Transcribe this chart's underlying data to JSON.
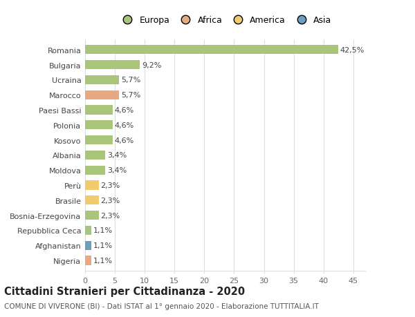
{
  "countries": [
    "Romania",
    "Bulgaria",
    "Ucraina",
    "Marocco",
    "Paesi Bassi",
    "Polonia",
    "Kosovo",
    "Albania",
    "Moldova",
    "Perù",
    "Brasile",
    "Bosnia-Erzegovina",
    "Repubblica Ceca",
    "Afghanistan",
    "Nigeria"
  ],
  "values": [
    42.5,
    9.2,
    5.7,
    5.7,
    4.6,
    4.6,
    4.6,
    3.4,
    3.4,
    2.3,
    2.3,
    2.3,
    1.1,
    1.1,
    1.1
  ],
  "labels": [
    "42,5%",
    "9,2%",
    "5,7%",
    "5,7%",
    "4,6%",
    "4,6%",
    "4,6%",
    "3,4%",
    "3,4%",
    "2,3%",
    "2,3%",
    "2,3%",
    "1,1%",
    "1,1%",
    "1,1%"
  ],
  "continents": [
    "Europa",
    "Europa",
    "Europa",
    "Africa",
    "Europa",
    "Europa",
    "Europa",
    "Europa",
    "Europa",
    "America",
    "America",
    "Europa",
    "Europa",
    "Asia",
    "Africa"
  ],
  "colors": {
    "Europa": "#a8c57a",
    "Africa": "#e8a882",
    "America": "#f0cc6e",
    "Asia": "#6a9fc0"
  },
  "legend_order": [
    "Europa",
    "Africa",
    "America",
    "Asia"
  ],
  "legend_colors": [
    "#a8c57a",
    "#e8a882",
    "#f0cc6e",
    "#6a9fc0"
  ],
  "title": "Cittadini Stranieri per Cittadinanza - 2020",
  "subtitle": "COMUNE DI VIVERONE (BI) - Dati ISTAT al 1° gennaio 2020 - Elaborazione TUTTITALIA.IT",
  "xlim": [
    0,
    47
  ],
  "xticks": [
    0,
    5,
    10,
    15,
    20,
    25,
    30,
    35,
    40,
    45
  ],
  "background_color": "#ffffff",
  "grid_color": "#dddddd",
  "bar_height": 0.6,
  "label_fontsize": 8,
  "tick_fontsize": 8,
  "title_fontsize": 10.5,
  "subtitle_fontsize": 7.5
}
